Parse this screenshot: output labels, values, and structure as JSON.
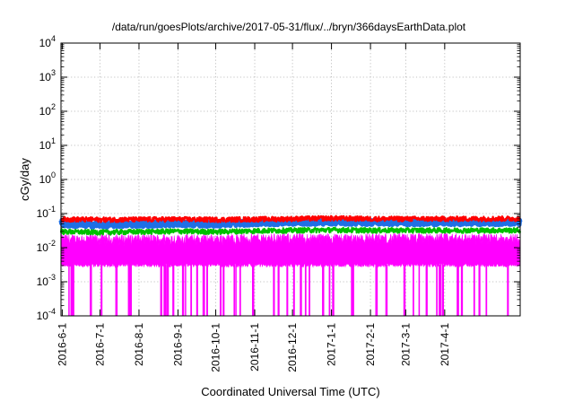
{
  "chart_data": {
    "type": "line",
    "title": "/data/run/goesPlots/archive/2017-05-31/flux/../bryn/366daysEarthData.plot",
    "xlabel": "Coordinated Universal Time (UTC)",
    "ylabel": "cGy/day",
    "yscale": "log",
    "ylim": [
      0.0001,
      10000
    ],
    "xlim": [
      "2016-05-31",
      "2017-05-31"
    ],
    "grid": true,
    "x_ticks": [
      {
        "date": "2016-06-01",
        "label": "2016-6-1"
      },
      {
        "date": "2016-07-01",
        "label": "2016-7-1"
      },
      {
        "date": "2016-08-01",
        "label": "2016-8-1"
      },
      {
        "date": "2016-09-01",
        "label": "2016-9-1"
      },
      {
        "date": "2016-10-01",
        "label": "2016-10-1"
      },
      {
        "date": "2016-11-01",
        "label": "2016-11-1"
      },
      {
        "date": "2016-12-01",
        "label": "2016-12-1"
      },
      {
        "date": "2017-01-01",
        "label": "2017-1-1"
      },
      {
        "date": "2017-02-01",
        "label": "2017-2-1"
      },
      {
        "date": "2017-03-01",
        "label": "2017-3-1"
      },
      {
        "date": "2017-04-01",
        "label": "2017-4-1"
      }
    ],
    "y_ticks": [
      {
        "value": 0.0001,
        "base": "10",
        "exp": "-4"
      },
      {
        "value": 0.001,
        "base": "10",
        "exp": "-3"
      },
      {
        "value": 0.01,
        "base": "10",
        "exp": "-2"
      },
      {
        "value": 0.1,
        "base": "10",
        "exp": "-1"
      },
      {
        "value": 1,
        "base": "10",
        "exp": "0"
      },
      {
        "value": 10,
        "base": "10",
        "exp": "1"
      },
      {
        "value": 100,
        "base": "10",
        "exp": "2"
      },
      {
        "value": 1000,
        "base": "10",
        "exp": "3"
      },
      {
        "value": 10000,
        "base": "10",
        "exp": "4"
      }
    ],
    "series": [
      {
        "color": "#ff0000",
        "values": [
          {
            "x": "2016-06-01",
            "y": 0.07
          },
          {
            "x": "2016-07-01",
            "y": 0.068
          },
          {
            "x": "2016-08-01",
            "y": 0.069
          },
          {
            "x": "2016-09-01",
            "y": 0.07
          },
          {
            "x": "2016-10-01",
            "y": 0.068
          },
          {
            "x": "2016-11-01",
            "y": 0.07
          },
          {
            "x": "2016-12-01",
            "y": 0.072
          },
          {
            "x": "2017-01-01",
            "y": 0.075
          },
          {
            "x": "2017-02-01",
            "y": 0.072
          },
          {
            "x": "2017-03-01",
            "y": 0.072
          },
          {
            "x": "2017-04-01",
            "y": 0.072
          },
          {
            "x": "2017-05-31",
            "y": 0.073
          }
        ]
      },
      {
        "color": "#1f6fe5",
        "values": [
          {
            "x": "2016-06-01",
            "y": 0.05
          },
          {
            "x": "2016-07-01",
            "y": 0.048
          },
          {
            "x": "2016-08-01",
            "y": 0.05
          },
          {
            "x": "2016-09-01",
            "y": 0.052
          },
          {
            "x": "2016-10-01",
            "y": 0.05
          },
          {
            "x": "2016-11-01",
            "y": 0.055
          },
          {
            "x": "2016-12-01",
            "y": 0.057
          },
          {
            "x": "2017-01-01",
            "y": 0.058
          },
          {
            "x": "2017-02-01",
            "y": 0.057
          },
          {
            "x": "2017-03-01",
            "y": 0.056
          },
          {
            "x": "2017-04-01",
            "y": 0.056
          },
          {
            "x": "2017-05-31",
            "y": 0.057
          }
        ]
      },
      {
        "color": "#00c000",
        "values": [
          {
            "x": "2016-06-01",
            "y": 0.03
          },
          {
            "x": "2016-07-01",
            "y": 0.029
          },
          {
            "x": "2016-08-01",
            "y": 0.03
          },
          {
            "x": "2016-09-01",
            "y": 0.031
          },
          {
            "x": "2016-10-01",
            "y": 0.03
          },
          {
            "x": "2016-11-01",
            "y": 0.032
          },
          {
            "x": "2016-12-01",
            "y": 0.033
          },
          {
            "x": "2017-01-01",
            "y": 0.034
          },
          {
            "x": "2017-02-01",
            "y": 0.033
          },
          {
            "x": "2017-03-01",
            "y": 0.033
          },
          {
            "x": "2017-04-01",
            "y": 0.033
          },
          {
            "x": "2017-05-31",
            "y": 0.033
          }
        ]
      },
      {
        "color": "#ff00ff",
        "values": [
          {
            "x": "2016-06-01",
            "y": 0.015
          },
          {
            "x": "2016-07-01",
            "y": 0.015
          },
          {
            "x": "2016-08-01",
            "y": 0.015
          },
          {
            "x": "2016-09-01",
            "y": 0.015
          },
          {
            "x": "2016-10-01",
            "y": 0.015
          },
          {
            "x": "2016-11-01",
            "y": 0.016
          },
          {
            "x": "2016-12-01",
            "y": 0.016
          },
          {
            "x": "2017-01-01",
            "y": 0.016
          },
          {
            "x": "2017-02-01",
            "y": 0.016
          },
          {
            "x": "2017-03-01",
            "y": 0.016
          },
          {
            "x": "2017-04-01",
            "y": 0.016
          },
          {
            "x": "2017-05-31",
            "y": 0.016
          }
        ]
      }
    ]
  }
}
